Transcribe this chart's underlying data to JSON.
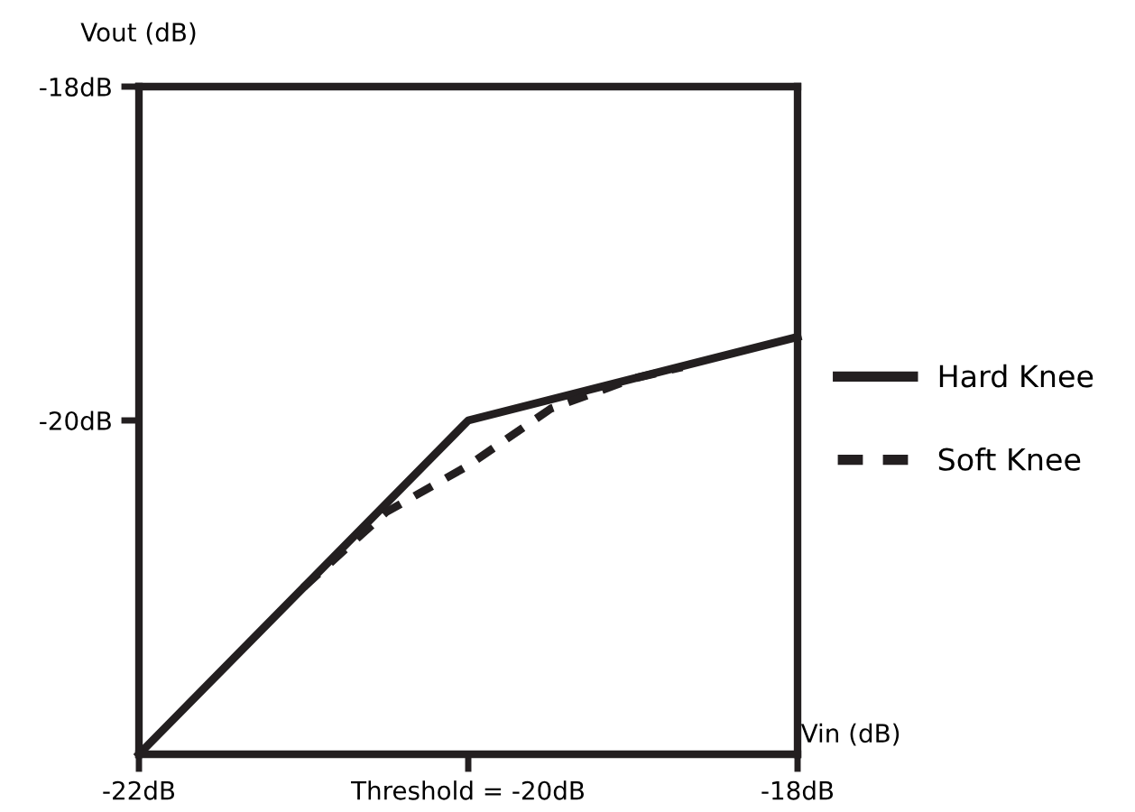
{
  "chart_data": {
    "type": "line",
    "xlabel": "Vin (dB)",
    "ylabel": "Vout (dB)",
    "xlim": [
      -22,
      -18
    ],
    "ylim": [
      -22,
      -18
    ],
    "xticks": [
      {
        "value": -22,
        "label": "-22dB"
      },
      {
        "value": -20,
        "label": "Threshold = -20dB"
      },
      {
        "value": -18,
        "label": "-18dB"
      }
    ],
    "yticks": [
      {
        "value": -20,
        "label": "-20dB"
      },
      {
        "value": -18,
        "label": "-18dB"
      }
    ],
    "series": [
      {
        "name": "Hard Knee",
        "color": "#231f20",
        "line_style": "solid",
        "x": [
          -22,
          -20,
          -18
        ],
        "values": [
          -22,
          -20,
          -19.5
        ]
      },
      {
        "name": "Soft Knee",
        "color": "#231f20",
        "line_style": "dashed",
        "x": [
          -21,
          -20.5,
          -20,
          -19.5,
          -19,
          -18.7
        ],
        "values": [
          -21,
          -20.55,
          -20.27,
          -19.93,
          -19.75,
          -19.68
        ]
      }
    ],
    "grid": false,
    "legend": "right",
    "marker": "none"
  }
}
